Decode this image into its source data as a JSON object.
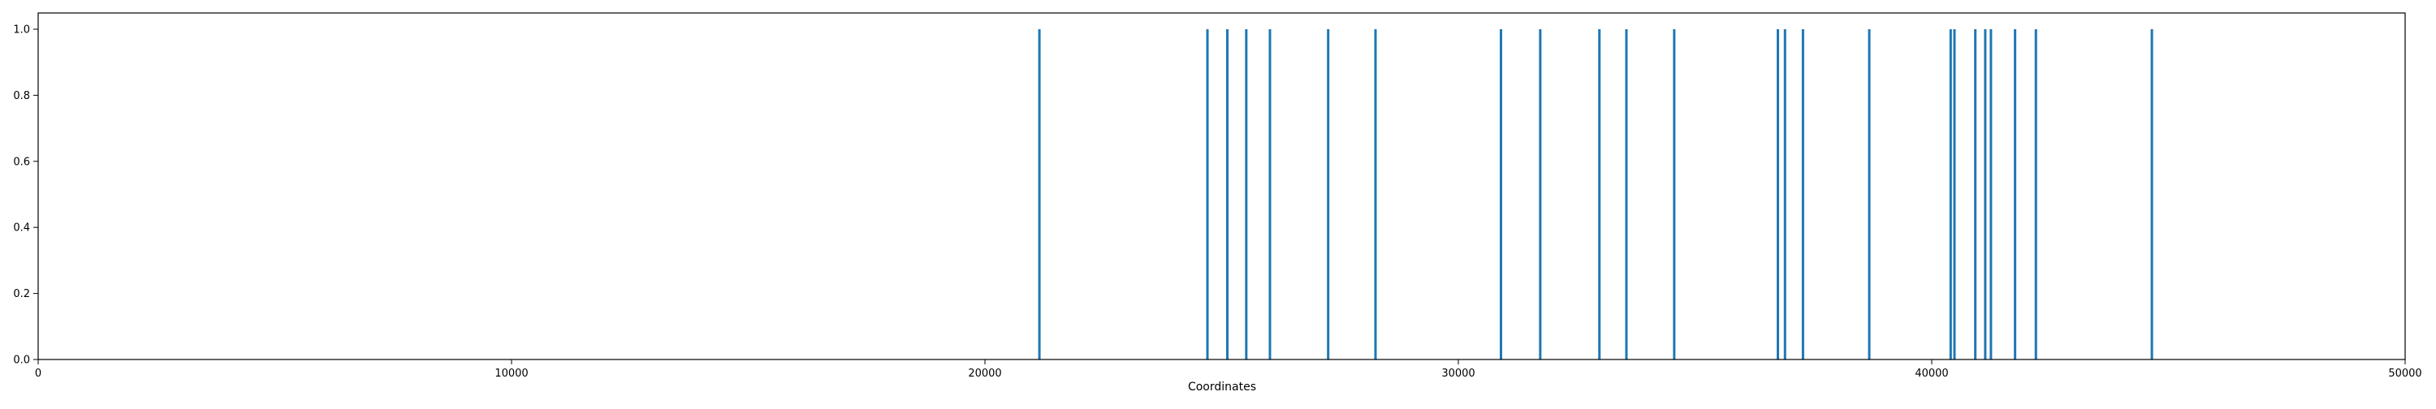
{
  "chart_data": {
    "type": "bar",
    "title": "",
    "xlabel": "Coordinates",
    "ylabel": "",
    "xlim": [
      0,
      50000
    ],
    "ylim": [
      0,
      1.0
    ],
    "x_ticks": [
      0,
      10000,
      20000,
      30000,
      40000,
      50000
    ],
    "x_tick_labels": [
      "0",
      "10000",
      "20000",
      "30000",
      "40000",
      "50000"
    ],
    "y_ticks": [
      0.0,
      0.2,
      0.4,
      0.6,
      0.8,
      1.0
    ],
    "y_tick_labels": [
      "0.0",
      "0.2",
      "0.4",
      "0.6",
      "0.8",
      "1.0"
    ],
    "grid": false,
    "legend": "none",
    "bar_color": "#1f77b4",
    "x": [
      21150,
      24700,
      25120,
      25520,
      26020,
      27250,
      28250,
      30900,
      31730,
      32980,
      33550,
      34560,
      36750,
      36900,
      37280,
      38680,
      40400,
      40480,
      40920,
      41130,
      41250,
      41760,
      42200,
      44650
    ],
    "values": [
      1,
      1,
      1,
      1,
      1,
      1,
      1,
      1,
      1,
      1,
      1,
      1,
      1,
      1,
      1,
      1,
      1,
      1,
      1,
      1,
      1,
      1,
      1,
      1
    ]
  }
}
